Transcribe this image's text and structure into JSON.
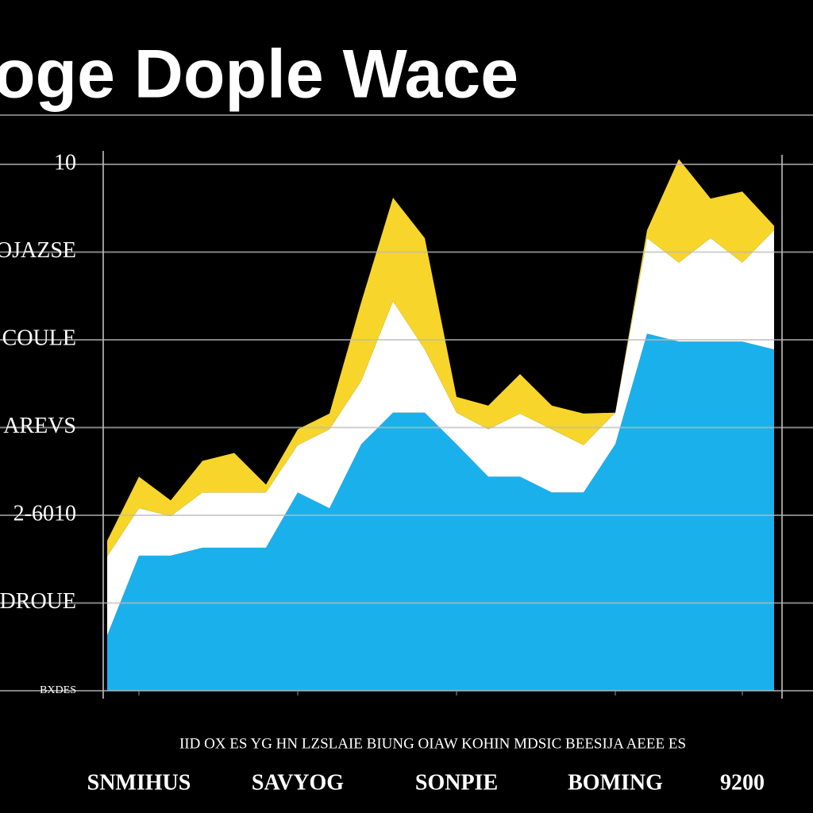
{
  "chart_data": {
    "type": "stacked-area",
    "title": "oge Dople Wace",
    "annotation": "IID OX ES YG HN LZSLAIE BIUNG OIAW KOHIN MDSIC BEESIJA AEEE ES",
    "x": [
      0,
      1,
      2,
      3,
      4,
      5,
      6,
      7,
      8,
      9,
      10,
      11,
      12,
      13,
      14,
      15,
      16,
      17,
      18,
      19,
      20,
      21
    ],
    "xlim": [
      0,
      21
    ],
    "xticks": [
      {
        "value": 1,
        "label": "SNMIHUS"
      },
      {
        "value": 6,
        "label": "SAVYOG"
      },
      {
        "value": 11,
        "label": "SONPIE"
      },
      {
        "value": 16,
        "label": "BOMING"
      },
      {
        "value": 20,
        "label": "9200"
      }
    ],
    "ylim": [
      0,
      6
    ],
    "yticks": [
      {
        "value": 0,
        "label": "BXDES"
      },
      {
        "value": 1,
        "label": "EDROUE"
      },
      {
        "value": 2,
        "label": "2-6010"
      },
      {
        "value": 3,
        "label": "AREVS"
      },
      {
        "value": 4,
        "label": "COULE"
      },
      {
        "value": 5,
        "label": "OJAZSE"
      },
      {
        "value": 6,
        "label": "10"
      }
    ],
    "grid": true,
    "series": [
      {
        "color": "#1ab0ec",
        "values": [
          0.63,
          1.54,
          1.54,
          1.63,
          1.63,
          1.63,
          2.26,
          2.08,
          2.81,
          3.17,
          3.17,
          2.81,
          2.44,
          2.44,
          2.26,
          2.26,
          2.81,
          4.07,
          3.98,
          3.98,
          3.98,
          3.89
        ]
      },
      {
        "color": "#ffffff",
        "values": [
          0.9,
          0.54,
          0.45,
          0.63,
          0.63,
          0.63,
          0.54,
          0.9,
          0.72,
          1.27,
          0.72,
          0.36,
          0.54,
          0.72,
          0.72,
          0.54,
          0.36,
          1.09,
          0.9,
          1.18,
          0.9,
          1.36
        ]
      },
      {
        "color": "#f7d52a",
        "values": [
          0.18,
          0.36,
          0.18,
          0.36,
          0.45,
          0.09,
          0.18,
          0.18,
          0.9,
          1.18,
          1.27,
          0.18,
          0.27,
          0.45,
          0.27,
          0.36,
          0,
          0.09,
          1.18,
          0.45,
          0.81,
          0.05
        ]
      }
    ]
  }
}
